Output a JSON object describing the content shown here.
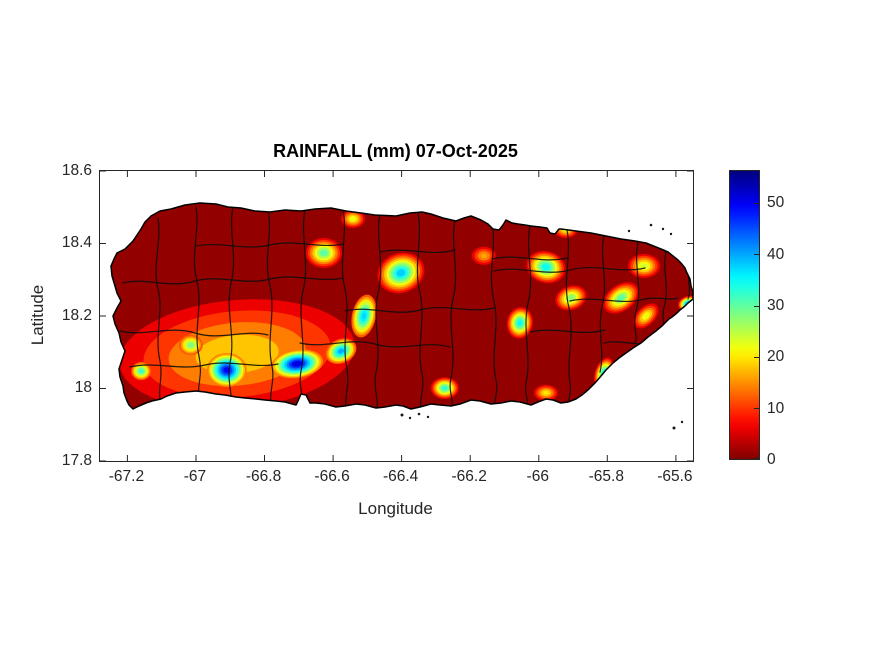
{
  "figure": {
    "title": "RAINFALL (mm) 07-Oct-2025",
    "background_color": "#ffffff",
    "axis_color": "#262626"
  },
  "axes": {
    "xlabel": "Longitude",
    "ylabel": "Latitude",
    "x_tick_labels": [
      "-67.2",
      "-67",
      "-66.8",
      "-66.6",
      "-66.4",
      "-66.2",
      "-66",
      "-65.8",
      "-65.6"
    ],
    "x_tick_values": [
      -67.2,
      -67.0,
      -66.8,
      -66.6,
      -66.4,
      -66.2,
      -66.0,
      -65.8,
      -65.6
    ],
    "y_tick_labels": [
      "18.6",
      "18.4",
      "18.2",
      "18",
      "17.8"
    ],
    "y_tick_values": [
      18.6,
      18.4,
      18.2,
      18.0,
      17.8
    ],
    "xlim": [
      -67.28,
      -65.55
    ],
    "ylim": [
      17.8,
      18.6
    ]
  },
  "colorbar": {
    "tick_labels": [
      "0",
      "10",
      "20",
      "30",
      "40",
      "50"
    ],
    "tick_values": [
      0,
      10,
      20,
      30,
      40,
      50
    ],
    "range_est": [
      0,
      56.5
    ],
    "colormap": "jet reversed (0 mm = dark red, 55+ mm = dark blue)"
  },
  "chart_data": {
    "type": "heatmap",
    "subtype": "filled_contour_rainfall_map",
    "title": "RAINFALL (mm) 07-Oct-2025",
    "region": "Puerto Rico with municipal boundaries overlaid",
    "date": "07-Oct-2025",
    "units": "mm",
    "xlabel": "Longitude",
    "ylabel": "Latitude",
    "xlim": [
      -67.28,
      -65.55
    ],
    "ylim": [
      17.8,
      18.6
    ],
    "colormap": "jet reversed (0 mm = dark red, 55+ mm = dark blue)",
    "colorbar_ticks": [
      0,
      10,
      20,
      30,
      40,
      50
    ],
    "colorbar_range_est": [
      0,
      56.5
    ],
    "background_rainfall_mm": 0,
    "hotspots": [
      {
        "label": "southwest-broad-warm-field",
        "lon": -66.88,
        "lat": 18.095,
        "peak_mm": 18,
        "rx_deg": 0.344,
        "ry_deg": 0.149,
        "rot_deg": -5,
        "base_mm": 0
      },
      {
        "label": "west-coast-cyan",
        "lon": -67.16,
        "lat": 18.048,
        "peak_mm": 32,
        "rx_deg": 0.029,
        "ry_deg": 0.025,
        "rot_deg": 0,
        "base_mm": 10
      },
      {
        "label": "southwest-green",
        "lon": -67.015,
        "lat": 18.12,
        "peak_mm": 28,
        "rx_deg": 0.035,
        "ry_deg": 0.028,
        "rot_deg": 0,
        "base_mm": 10
      },
      {
        "label": "southwest-blue",
        "lon": -66.91,
        "lat": 18.051,
        "peak_mm": 50,
        "rx_deg": 0.058,
        "ry_deg": 0.047,
        "rot_deg": 0,
        "base_mm": 12
      },
      {
        "label": "south-central-blue-max",
        "lon": -66.705,
        "lat": 18.068,
        "peak_mm": 52,
        "rx_deg": 0.076,
        "ry_deg": 0.039,
        "rot_deg": -8,
        "base_mm": 12
      },
      {
        "label": "central-blue-band",
        "lon": -66.577,
        "lat": 18.103,
        "peak_mm": 40,
        "rx_deg": 0.047,
        "ry_deg": 0.033,
        "rot_deg": -25,
        "base_mm": 10
      },
      {
        "label": "central-mountain-cyan-band",
        "lon": -66.51,
        "lat": 18.2,
        "peak_mm": 38,
        "rx_deg": 0.035,
        "ry_deg": 0.06,
        "rot_deg": 12,
        "base_mm": 10
      },
      {
        "label": "north-central-green",
        "lon": -66.627,
        "lat": 18.374,
        "peak_mm": 30,
        "rx_deg": 0.053,
        "ry_deg": 0.041,
        "rot_deg": 0,
        "base_mm": 4
      },
      {
        "label": "north-coast-yellow",
        "lon": -66.542,
        "lat": 18.468,
        "peak_mm": 22,
        "rx_deg": 0.035,
        "ry_deg": 0.025,
        "rot_deg": 0,
        "base_mm": 4
      },
      {
        "label": "north-central-cyan",
        "lon": -66.402,
        "lat": 18.319,
        "peak_mm": 38,
        "rx_deg": 0.07,
        "ry_deg": 0.055,
        "rot_deg": -20,
        "base_mm": 4
      },
      {
        "label": "east-central-cyan",
        "lon": -65.979,
        "lat": 18.335,
        "peak_mm": 35,
        "rx_deg": 0.058,
        "ry_deg": 0.044,
        "rot_deg": 15,
        "base_mm": 4
      },
      {
        "label": "northeast-coast-orange",
        "lon": -65.921,
        "lat": 18.44,
        "peak_mm": 22,
        "rx_deg": 0.035,
        "ry_deg": 0.025,
        "rot_deg": 0,
        "base_mm": 4
      },
      {
        "label": "central-east-cyan",
        "lon": -66.055,
        "lat": 18.181,
        "peak_mm": 35,
        "rx_deg": 0.038,
        "ry_deg": 0.044,
        "rot_deg": 10,
        "base_mm": 4
      },
      {
        "label": "east-yellow",
        "lon": -65.906,
        "lat": 18.25,
        "peak_mm": 28,
        "rx_deg": 0.047,
        "ry_deg": 0.033,
        "rot_deg": -20,
        "base_mm": 4
      },
      {
        "label": "east-green-band",
        "lon": -65.76,
        "lat": 18.25,
        "peak_mm": 30,
        "rx_deg": 0.058,
        "ry_deg": 0.036,
        "rot_deg": -35,
        "base_mm": 4
      },
      {
        "label": "east-yellow-streak",
        "lon": -65.687,
        "lat": 18.2,
        "peak_mm": 22,
        "rx_deg": 0.044,
        "ry_deg": 0.025,
        "rot_deg": -45,
        "base_mm": 4
      },
      {
        "label": "northeast-orange",
        "lon": -65.693,
        "lat": 18.338,
        "peak_mm": 24,
        "rx_deg": 0.047,
        "ry_deg": 0.033,
        "rot_deg": 0,
        "base_mm": 4
      },
      {
        "label": "east-tip-blue",
        "lon": -65.562,
        "lat": 18.233,
        "peak_mm": 46,
        "rx_deg": 0.032,
        "ry_deg": 0.022,
        "rot_deg": -10,
        "base_mm": 4
      },
      {
        "label": "south-central-cyan",
        "lon": -66.274,
        "lat": 18.001,
        "peak_mm": 33,
        "rx_deg": 0.041,
        "ry_deg": 0.03,
        "rot_deg": 0,
        "base_mm": 4
      },
      {
        "label": "southeast-coast-cyan",
        "lon": -65.81,
        "lat": 18.043,
        "peak_mm": 35,
        "rx_deg": 0.026,
        "ry_deg": 0.044,
        "rot_deg": 20,
        "base_mm": 4
      },
      {
        "label": "south-coast-yellow",
        "lon": -65.979,
        "lat": 17.988,
        "peak_mm": 20,
        "rx_deg": 0.035,
        "ry_deg": 0.022,
        "rot_deg": 0,
        "base_mm": 4
      },
      {
        "label": "san-juan-area-orange",
        "lon": -66.16,
        "lat": 18.366,
        "peak_mm": 16,
        "rx_deg": 0.035,
        "ry_deg": 0.025,
        "rot_deg": 0,
        "base_mm": 4
      }
    ]
  }
}
